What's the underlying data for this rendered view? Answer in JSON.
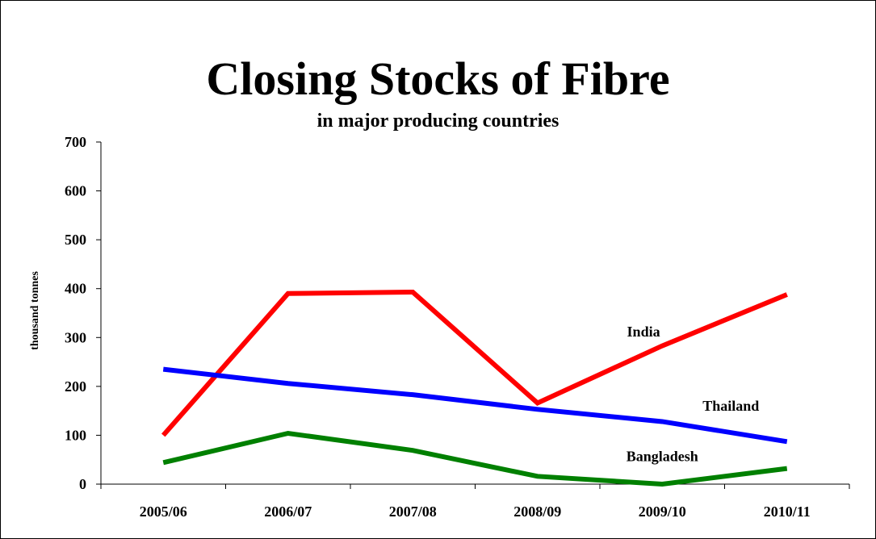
{
  "chart_data": {
    "type": "line",
    "title": "Closing Stocks of Fibre",
    "subtitle": "in major producing countries",
    "xlabel": "",
    "ylabel": "thousand tonnes",
    "categories": [
      "2005/06",
      "2006/07",
      "2007/08",
      "2008/09",
      "2009/10",
      "2010/11"
    ],
    "yticks": [
      0,
      100,
      200,
      300,
      400,
      500,
      600,
      700
    ],
    "ylim": [
      0,
      700
    ],
    "grid": false,
    "legend": "inline labels",
    "series": [
      {
        "name": "India",
        "color": "#ff0000",
        "values": [
          100,
          390,
          393,
          166,
          283,
          388
        ]
      },
      {
        "name": "Thailand",
        "color": "#0000ff",
        "values": [
          235,
          206,
          183,
          153,
          128,
          87
        ]
      },
      {
        "name": "Bangladesh",
        "color": "#008000",
        "values": [
          44,
          104,
          69,
          16,
          0,
          32
        ]
      }
    ]
  }
}
